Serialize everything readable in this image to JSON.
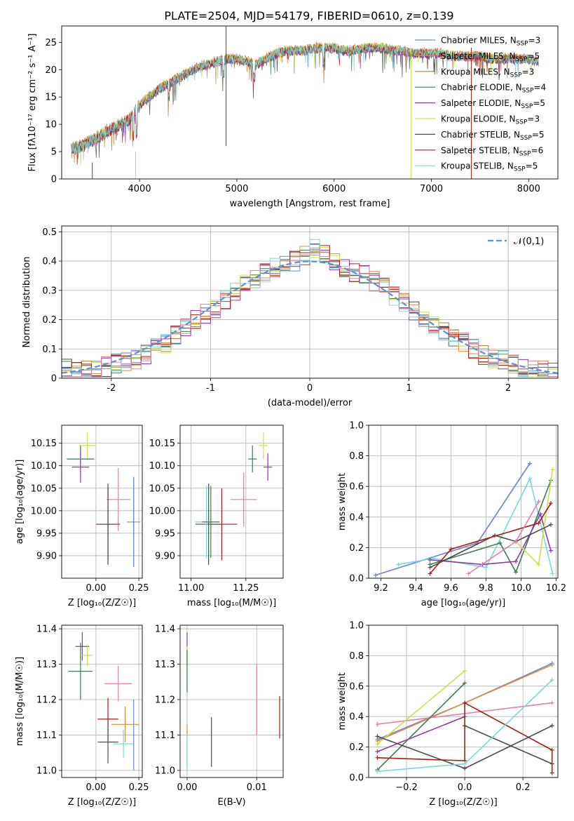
{
  "title": "PLATE=2504, MJD=54179, FIBERID=0610, z=0.139",
  "colors": {
    "series": [
      "#6a8ed8",
      "#e08a3c",
      "#b57a3a",
      "#3f7a4f",
      "#8e3aa8",
      "#c7e24c",
      "#4a4a4a",
      "#a81c1c",
      "#7dd6dc"
    ],
    "pink": "#e07fb0",
    "normal_curve": "#5b8fd6"
  },
  "chart_data": [
    {
      "type": "line",
      "name": "spectrum",
      "xlabel": "wavelength [Angstrom, rest frame]",
      "ylabel": "Flux [fλ10⁻¹⁷ erg cm⁻² s⁻¹ A⁻¹]",
      "xlim": [
        3200,
        8300
      ],
      "ylim": [
        0,
        28
      ],
      "xticks": [
        4000,
        5000,
        6000,
        7000,
        8000
      ],
      "yticks": [
        0,
        5,
        10,
        15,
        20,
        25
      ],
      "grid": false,
      "legend_position": "right",
      "legend": [
        "Chabrier MILES, N_SSP=3",
        "Salpeter MILES, N_SSP=5",
        "Kroupa MILES, N_SSP=3",
        "Chabrier ELODIE, N_SSP=4",
        "Salpeter ELODIE, N_SSP=5",
        "Kroupa ELODIE, N_SSP=3",
        "Chabrier STELIB, N_SSP=5",
        "Salpeter STELIB, N_SSP=6",
        "Kroupa STELIB, N_SSP=5"
      ],
      "continuum": {
        "x": [
          3300,
          3400,
          3500,
          3600,
          3700,
          3800,
          3900,
          4000,
          4100,
          4200,
          4300,
          4400,
          4500,
          4600,
          4700,
          4800,
          4900,
          5000,
          5100,
          5200,
          5300,
          5400,
          5500,
          5600,
          5700,
          5800,
          5900,
          6000,
          6100,
          6200,
          6300,
          6400,
          6500,
          6600,
          6700,
          6800,
          6900,
          7000,
          7100,
          7200,
          7300,
          7400,
          7500,
          7600,
          7700,
          7800,
          7900,
          8000,
          8100
        ],
        "y": [
          5.5,
          6.0,
          7.0,
          8.0,
          9.0,
          10.0,
          11.0,
          13.5,
          15.0,
          16.5,
          17.5,
          18.5,
          19.5,
          20.5,
          21.0,
          21.5,
          22.0,
          22.0,
          21.5,
          21.0,
          22.0,
          23.0,
          23.5,
          23.5,
          23.5,
          24.0,
          24.0,
          24.0,
          23.5,
          23.5,
          24.0,
          24.0,
          24.0,
          23.5,
          23.5,
          23.0,
          23.0,
          23.0,
          23.0,
          22.5,
          22.5,
          22.5,
          22.5,
          22.0,
          22.0,
          22.0,
          22.0,
          22.0,
          21.5
        ]
      },
      "spike_lines": [
        {
          "x": 4890,
          "ytop": 28,
          "ybot": 6,
          "color_index": 6
        },
        {
          "x": 6790,
          "ytop": 24,
          "ybot": 0,
          "color_index": 5
        },
        {
          "x": 7410,
          "ytop": 24,
          "ybot": 0,
          "color_index": 7
        },
        {
          "x": 3960,
          "ytop": 5,
          "ybot": 0,
          "color_index": 5
        },
        {
          "x": 3515,
          "ytop": 3,
          "ybot": 0,
          "color_index": 7
        }
      ]
    },
    {
      "type": "bar",
      "name": "residual-histogram",
      "xlabel": "(data-model)/error",
      "ylabel": "Normed distribution",
      "xlim": [
        -2.5,
        2.5
      ],
      "ylim": [
        0,
        0.52
      ],
      "xticks": [
        -2,
        -1,
        0,
        1,
        2
      ],
      "yticks": [
        0.0,
        0.1,
        0.2,
        0.3,
        0.4,
        0.5
      ],
      "grid": true,
      "legend": [
        "𝒩(0,1)"
      ],
      "legend_position": "top-right",
      "bin_edges": [
        -2.5,
        -2.4,
        -2.3,
        -2.2,
        -2.1,
        -2.0,
        -1.9,
        -1.8,
        -1.7,
        -1.6,
        -1.5,
        -1.4,
        -1.3,
        -1.2,
        -1.1,
        -1.0,
        -0.9,
        -0.8,
        -0.7,
        -0.6,
        -0.5,
        -0.4,
        -0.3,
        -0.2,
        -0.1,
        0.0,
        0.1,
        0.2,
        0.3,
        0.4,
        0.5,
        0.6,
        0.7,
        0.8,
        0.9,
        1.0,
        1.1,
        1.2,
        1.3,
        1.4,
        1.5,
        1.6,
        1.7,
        1.8,
        1.9,
        2.0,
        2.1,
        2.2,
        2.3,
        2.4,
        2.5
      ],
      "base_values": [
        0.03,
        0.025,
        0.03,
        0.035,
        0.04,
        0.05,
        0.055,
        0.065,
        0.08,
        0.1,
        0.12,
        0.15,
        0.17,
        0.2,
        0.22,
        0.24,
        0.27,
        0.3,
        0.32,
        0.34,
        0.36,
        0.38,
        0.39,
        0.4,
        0.42,
        0.44,
        0.42,
        0.4,
        0.38,
        0.36,
        0.35,
        0.33,
        0.31,
        0.28,
        0.26,
        0.23,
        0.2,
        0.18,
        0.16,
        0.14,
        0.12,
        0.1,
        0.08,
        0.07,
        0.06,
        0.05,
        0.04,
        0.03,
        0.025,
        0.02
      ]
    },
    {
      "type": "scatter",
      "name": "age-vs-Z",
      "xlabel": "Z [log₁₀(Z/Z☉)]",
      "ylabel": "age  [log₁₀(age/yr)]",
      "xlim": [
        -0.2,
        0.27
      ],
      "ylim": [
        9.85,
        10.19
      ],
      "xticks": [
        0.0,
        0.25
      ],
      "xtick_labels": [
        "0.00",
        "0.25"
      ],
      "yticks": [
        9.9,
        9.95,
        10.0,
        10.05,
        10.1,
        10.15
      ],
      "ytick_labels": [
        "9.90",
        "9.95",
        "10.00",
        "10.05",
        "10.10",
        "10.15"
      ],
      "grid": true,
      "points": [
        {
          "x": -0.05,
          "y": 10.145,
          "xerr": 0.05,
          "yerr": 0.03,
          "color_index": 5
        },
        {
          "x": -0.09,
          "y": 10.115,
          "xerr": 0.08,
          "yerr": 0.03,
          "color_index": 3
        },
        {
          "x": -0.09,
          "y": 10.097,
          "xerr": 0.05,
          "yerr": 0.035,
          "color_index": 4
        },
        {
          "x": 0.13,
          "y": 10.025,
          "xerr": 0.07,
          "yerr": 0.07,
          "color_index": "pink"
        },
        {
          "x": 0.07,
          "y": 9.97,
          "xerr": 0.07,
          "yerr": 0.08,
          "color_index": 7
        },
        {
          "x": 0.07,
          "y": 9.97,
          "xerr": 0.04,
          "yerr": 0.09,
          "color_index": 6
        },
        {
          "x": 0.22,
          "y": 9.975,
          "xerr": 0.04,
          "yerr": 0.1,
          "color_index": 1
        },
        {
          "x": 0.22,
          "y": 9.975,
          "xerr": 0.02,
          "yerr": 0.1,
          "color_index": 8
        },
        {
          "x": 0.22,
          "y": 9.975,
          "xerr": 0.01,
          "yerr": 0.1,
          "color_index": 0
        }
      ]
    },
    {
      "type": "scatter",
      "name": "age-vs-mass",
      "xlabel": "mass [log₁₀(M/M☉)]",
      "ylabel": "",
      "xlim": [
        10.95,
        11.42
      ],
      "ylim": [
        9.85,
        10.19
      ],
      "xticks": [
        11.0,
        11.25
      ],
      "xtick_labels": [
        "11.00",
        "11.25"
      ],
      "yticks": [
        9.9,
        9.95,
        10.0,
        10.05,
        10.1,
        10.15
      ],
      "ytick_labels": [
        "9.90",
        "9.95",
        "10.00",
        "10.05",
        "10.10",
        "10.15"
      ],
      "grid": true,
      "points": [
        {
          "x": 11.33,
          "y": 10.145,
          "xerr": 0.02,
          "yerr": 0.03,
          "color_index": 5
        },
        {
          "x": 11.28,
          "y": 10.115,
          "xerr": 0.02,
          "yerr": 0.03,
          "color_index": 3
        },
        {
          "x": 11.35,
          "y": 10.097,
          "xerr": 0.02,
          "yerr": 0.03,
          "color_index": 4
        },
        {
          "x": 11.24,
          "y": 10.025,
          "xerr": 0.06,
          "yerr": 0.06,
          "color_index": "pink"
        },
        {
          "x": 11.14,
          "y": 9.97,
          "xerr": 0.07,
          "yerr": 0.08,
          "color_index": 7
        },
        {
          "x": 11.08,
          "y": 9.97,
          "xerr": 0.06,
          "yerr": 0.09,
          "color_index": 6
        },
        {
          "x": 11.07,
          "y": 9.975,
          "xerr": 0.05,
          "yerr": 0.08,
          "color_index": 8
        },
        {
          "x": 11.09,
          "y": 9.975,
          "xerr": 0.04,
          "yerr": 0.08,
          "color_index": 3
        }
      ]
    },
    {
      "type": "line",
      "name": "mass-weight-vs-age",
      "xlabel": "age  [log₁₀(age/yr)]",
      "ylabel": "mass weight",
      "xlim": [
        9.13,
        10.21
      ],
      "ylim": [
        0,
        1.0
      ],
      "xticks": [
        9.2,
        9.4,
        9.6,
        9.8,
        10.0,
        10.2
      ],
      "xtick_labels": [
        "9.2",
        "9.4",
        "9.6",
        "9.8",
        "10.0",
        "10.2"
      ],
      "yticks": [
        0.0,
        0.2,
        0.4,
        0.6,
        0.8,
        1.0
      ],
      "ytick_labels": [
        "0.0",
        "0.2",
        "0.4",
        "0.6",
        "0.8",
        "1.0"
      ],
      "grid": true,
      "series": [
        {
          "color_index": 1,
          "x": [
            9.17,
            9.75,
            10.05
          ],
          "y": [
            0.02,
            0.23,
            0.75
          ]
        },
        {
          "color_index": 0,
          "x": [
            9.17,
            9.75,
            10.05
          ],
          "y": [
            0.02,
            0.23,
            0.75
          ]
        },
        {
          "color_index": 8,
          "x": [
            9.3,
            9.5,
            9.8,
            10.05,
            10.18
          ],
          "y": [
            0.09,
            0.13,
            0.07,
            0.65,
            0.03
          ]
        },
        {
          "color_index": 3,
          "x": [
            9.48,
            9.88,
            9.97,
            10.17
          ],
          "y": [
            0.09,
            0.23,
            0.04,
            0.64
          ]
        },
        {
          "color_index": 4,
          "x": [
            9.48,
            9.78,
            9.97,
            10.11,
            10.17
          ],
          "y": [
            0.12,
            0.09,
            0.11,
            0.42,
            0.18
          ]
        },
        {
          "color_index": 5,
          "x": [
            9.97,
            10.1,
            10.18
          ],
          "y": [
            0.24,
            0.09,
            0.71
          ]
        },
        {
          "color_index": 6,
          "x": [
            9.48,
            9.85,
            9.97,
            10.17
          ],
          "y": [
            0.07,
            0.28,
            0.24,
            0.35
          ]
        },
        {
          "color_index": 7,
          "x": [
            9.48,
            9.6,
            10.1,
            10.17
          ],
          "y": [
            0.03,
            0.19,
            0.36,
            0.49
          ]
        },
        {
          "color_index": "pink",
          "x": [
            9.7,
            9.97,
            10.1
          ],
          "y": [
            0.03,
            0.24,
            0.5
          ]
        }
      ]
    },
    {
      "type": "scatter",
      "name": "mass-vs-Z",
      "xlabel": "Z [log₁₀(Z/Z☉)]",
      "ylabel": "mass [log₁₀(M/M☉)]",
      "xlim": [
        -0.2,
        0.27
      ],
      "ylim": [
        10.98,
        11.41
      ],
      "xticks": [
        0.0,
        0.25
      ],
      "xtick_labels": [
        "0.00",
        "0.25"
      ],
      "yticks": [
        11.0,
        11.1,
        11.2,
        11.3,
        11.4
      ],
      "ytick_labels": [
        "11.0",
        "11.1",
        "11.2",
        "11.3",
        "11.4"
      ],
      "grid": true,
      "points": [
        {
          "x": -0.08,
          "y": 11.35,
          "xerr": 0.04,
          "yerr": 0.04,
          "color_index": 4
        },
        {
          "x": -0.05,
          "y": 11.325,
          "xerr": 0.03,
          "yerr": 0.03,
          "color_index": 5
        },
        {
          "x": -0.09,
          "y": 11.28,
          "xerr": 0.07,
          "yerr": 0.08,
          "color_index": 3
        },
        {
          "x": 0.13,
          "y": 11.245,
          "xerr": 0.08,
          "yerr": 0.05,
          "color_index": "pink"
        },
        {
          "x": 0.07,
          "y": 11.145,
          "xerr": 0.06,
          "yerr": 0.06,
          "color_index": 7
        },
        {
          "x": 0.17,
          "y": 11.13,
          "xerr": 0.08,
          "yerr": 0.05,
          "color_index": 1
        },
        {
          "x": 0.07,
          "y": 11.08,
          "xerr": 0.06,
          "yerr": 0.06,
          "color_index": 6
        },
        {
          "x": 0.16,
          "y": 11.075,
          "xerr": 0.06,
          "yerr": 0.04,
          "color_index": 8
        },
        {
          "x": 0.22,
          "y": 11.1,
          "xerr": 0.005,
          "yerr": 0.1,
          "color_index": 0
        }
      ]
    },
    {
      "type": "scatter",
      "name": "mass-vs-ebv",
      "xlabel": "E(B-V)",
      "ylabel": "",
      "xlim": [
        -0.001,
        0.0138
      ],
      "ylim": [
        10.98,
        11.41
      ],
      "xticks": [
        0.0,
        0.01
      ],
      "xtick_labels": [
        "0.00",
        "0.01"
      ],
      "yticks": [
        11.0,
        11.1,
        11.2,
        11.3,
        11.4
      ],
      "ytick_labels": [
        "11.0",
        "11.1",
        "11.2",
        "11.3",
        "11.4"
      ],
      "grid": true,
      "points": [
        {
          "x": 0.0,
          "y": 11.35,
          "xerr": 0,
          "yerr": 0.04,
          "color_index": 4
        },
        {
          "x": 0.0,
          "y": 11.32,
          "xerr": 0,
          "yerr": 0.03,
          "color_index": 5
        },
        {
          "x": 0.0,
          "y": 11.28,
          "xerr": 0,
          "yerr": 0.06,
          "color_index": 3
        },
        {
          "x": 0.0,
          "y": 11.07,
          "xerr": 0,
          "yerr": 0.06,
          "color_index": 1
        },
        {
          "x": 0.0,
          "y": 11.05,
          "xerr": 0,
          "yerr": 0.05,
          "color_index": 8
        },
        {
          "x": 0.0035,
          "y": 11.08,
          "xerr": 0,
          "yerr": 0.07,
          "color_index": 6
        },
        {
          "x": 0.01,
          "y": 11.2,
          "xerr": 0,
          "yerr": 0.1,
          "color_index": "pink"
        },
        {
          "x": 0.0133,
          "y": 11.15,
          "xerr": 0,
          "yerr": 0.06,
          "color_index": 7
        }
      ]
    },
    {
      "type": "line",
      "name": "mass-weight-vs-Z",
      "xlabel": "Z [log₁₀(Z/Z☉)]",
      "ylabel": "mass weight",
      "xlim": [
        -0.33,
        0.32
      ],
      "ylim": [
        0,
        1.0
      ],
      "xticks": [
        -0.2,
        0.0,
        0.2
      ],
      "xtick_labels": [
        "−0.2",
        "0.0",
        "0.2"
      ],
      "yticks": [
        0.0,
        0.2,
        0.4,
        0.6,
        0.8,
        1.0
      ],
      "ytick_labels": [
        "0.0",
        "0.2",
        "0.4",
        "0.6",
        "0.8",
        "1.0"
      ],
      "grid": true,
      "series": [
        {
          "color_index": 0,
          "x": [
            -0.3,
            0.0,
            0.3
          ],
          "y": [
            0.25,
            0.49,
            0.75
          ]
        },
        {
          "color_index": 1,
          "x": [
            -0.3,
            0.0,
            0.3
          ],
          "y": [
            0.24,
            0.49,
            0.74
          ]
        },
        {
          "color_index": "pink",
          "x": [
            -0.3,
            0.3
          ],
          "y": [
            0.35,
            0.49
          ]
        },
        {
          "color_index": 5,
          "x": [
            -0.3,
            0.0
          ],
          "y": [
            0.22,
            0.7
          ]
        },
        {
          "color_index": 3,
          "x": [
            -0.3,
            0.0
          ],
          "y": [
            0.05,
            0.62
          ]
        },
        {
          "color_index": 4,
          "x": [
            -0.3,
            0.0
          ],
          "y": [
            0.17,
            0.4
          ]
        },
        {
          "color_index": 6,
          "x": [
            -0.3,
            0.0,
            0.3
          ],
          "y": [
            0.27,
            0.06,
            0.34
          ]
        },
        {
          "color_index": 6,
          "x": [
            0.0,
            0.3
          ],
          "y": [
            0.34,
            0.09
          ]
        },
        {
          "color_index": 7,
          "x": [
            -0.3,
            0.0,
            0.0,
            0.3,
            0.3
          ],
          "y": [
            0.13,
            0.11,
            0.49,
            0.18,
            0.03
          ]
        },
        {
          "color_index": 8,
          "x": [
            -0.3,
            0.0,
            0.3
          ],
          "y": [
            0.04,
            0.09,
            0.64
          ]
        }
      ]
    }
  ]
}
